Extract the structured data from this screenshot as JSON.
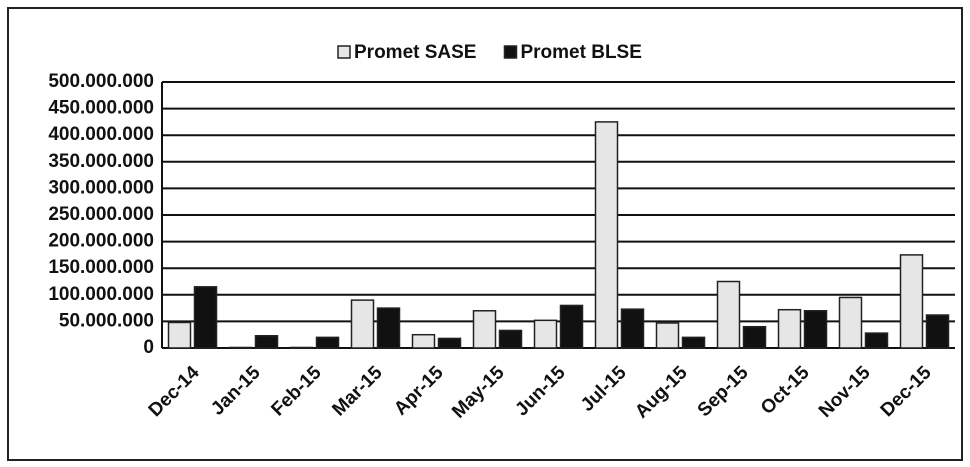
{
  "chart_data": {
    "type": "bar",
    "categories": [
      "Dec-14",
      "Jan-15",
      "Feb-15",
      "Mar-15",
      "Apr-15",
      "May-15",
      "Jun-15",
      "Jul-15",
      "Aug-15",
      "Sep-15",
      "Oct-15",
      "Nov-15",
      "Dec-15"
    ],
    "series": [
      {
        "name": "Promet SASE",
        "color": "#e6e6e6",
        "values": [
          48000000,
          1000000,
          1000000,
          90000000,
          25000000,
          70000000,
          52000000,
          425000000,
          47000000,
          125000000,
          72000000,
          95000000,
          175000000
        ]
      },
      {
        "name": "Promet BLSE",
        "color": "#111111",
        "values": [
          115000000,
          23000000,
          20000000,
          75000000,
          18000000,
          33000000,
          80000000,
          73000000,
          20000000,
          40000000,
          70000000,
          28000000,
          62000000
        ]
      }
    ],
    "ylim": [
      0,
      500000000
    ],
    "yticks": [
      0,
      {
        "value": 50000000,
        "label": "50.000.000"
      },
      {
        "value": 100000000,
        "label": "100.000.000"
      },
      {
        "value": 150000000,
        "label": "150.000.000"
      },
      {
        "value": 200000000,
        "label": "200.000.000"
      },
      {
        "value": 250000000,
        "label": "250.000.000"
      },
      {
        "value": 300000000,
        "label": "300.000.000"
      },
      {
        "value": 350000000,
        "label": "350.000.000"
      },
      {
        "value": 400000000,
        "label": "400.000.000"
      },
      {
        "value": 450000000,
        "label": "450.000.000"
      },
      {
        "value": 500000000,
        "label": "500.000.000"
      }
    ],
    "grid": true,
    "legend": "top"
  }
}
